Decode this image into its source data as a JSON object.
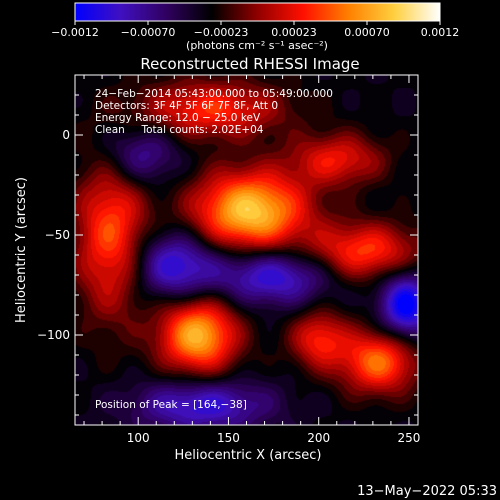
{
  "chart_data": {
    "type": "heatmap",
    "title": "Reconstructed RHESSI Image",
    "xlabel": "Heliocentric X (arcsec)",
    "ylabel": "Heliocentric Y (arcsec)",
    "xlim": [
      65,
      255
    ],
    "ylim": [
      -145,
      30
    ],
    "x_ticks": [
      100,
      150,
      200,
      250
    ],
    "y_ticks": [
      0,
      -50,
      -100
    ],
    "colorbar": {
      "label": "(photons cm⁻² s⁻¹ asec⁻²)",
      "ticks": [
        "−0.0012",
        "−0.00070",
        "−0.00023",
        "0.00023",
        "0.00070",
        "0.0012"
      ],
      "range": [
        -0.0012,
        0.0012
      ],
      "colormap": [
        "#0000ff",
        "#4010c0",
        "#300060",
        "#000000",
        "#900000",
        "#ff1000",
        "#ff8000",
        "#ffd040",
        "#ffffff"
      ]
    },
    "annotations": [
      "24−Feb−2014 05:43:00.000 to 05:49:00.000",
      "Detectors: 3F 4F 5F 6F 7F 8F, Att 0",
      "Energy Range: 12.0 − 25.0 keV",
      "Clean     Total counts: 2.02E+04"
    ],
    "peak_text": "Position of Peak = [164,−38]",
    "peak": [
      164,
      -38
    ],
    "sources": [
      {
        "x": 162,
        "y": -38,
        "amp": 0.00125,
        "sx": 22,
        "sy": 14
      },
      {
        "x": 133,
        "y": -100,
        "amp": 0.00115,
        "sx": 15,
        "sy": 13
      },
      {
        "x": 233,
        "y": -113,
        "amp": 0.0009,
        "sx": 15,
        "sy": 11
      },
      {
        "x": 85,
        "y": -50,
        "amp": 0.0008,
        "sx": 14,
        "sy": 28
      },
      {
        "x": 225,
        "y": -58,
        "amp": 0.00075,
        "sx": 22,
        "sy": 10
      },
      {
        "x": 140,
        "y": 13,
        "amp": 0.0007,
        "sx": 28,
        "sy": 10
      },
      {
        "x": 210,
        "y": -12,
        "amp": 0.0006,
        "sx": 18,
        "sy": 9
      },
      {
        "x": 200,
        "y": -102,
        "amp": 0.00065,
        "sx": 11,
        "sy": 10
      },
      {
        "x": 120,
        "y": -65,
        "amp": -0.0007,
        "sx": 17,
        "sy": 12
      },
      {
        "x": 175,
        "y": -70,
        "amp": -0.0007,
        "sx": 22,
        "sy": 10
      },
      {
        "x": 135,
        "y": -135,
        "amp": -0.00065,
        "sx": 26,
        "sy": 9
      },
      {
        "x": 248,
        "y": -85,
        "amp": -0.0009,
        "sx": 10,
        "sy": 12
      },
      {
        "x": 100,
        "y": -10,
        "amp": -0.0005,
        "sx": 15,
        "sy": 11
      }
    ]
  },
  "footer": {
    "timestamp": "13−May−2022 05:33"
  }
}
